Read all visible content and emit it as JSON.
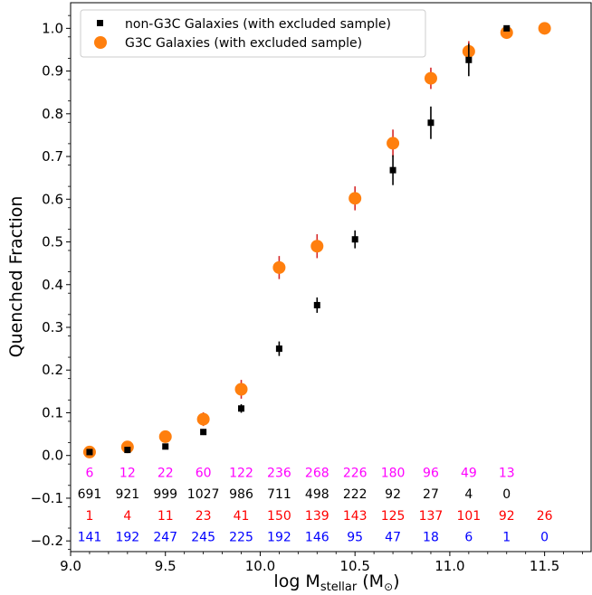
{
  "chart_data": {
    "type": "scatter",
    "xlabel_main": "log M",
    "xlabel_sub": "stellar",
    "xlabel_unit_open": " (M",
    "xlabel_unit_sub": "⊙",
    "xlabel_unit_close": ")",
    "ylabel": "Quenched Fraction",
    "xlim": [
      9.0,
      11.75
    ],
    "ylim": [
      -0.225,
      1.06
    ],
    "x_ticks": [
      9.0,
      9.5,
      10.0,
      10.5,
      11.0,
      11.5
    ],
    "x_tick_labels": [
      "9.0",
      "9.5",
      "10.0",
      "10.5",
      "11.0",
      "11.5"
    ],
    "y_ticks": [
      -0.2,
      -0.1,
      0.0,
      0.1,
      0.2,
      0.3,
      0.4,
      0.5,
      0.6,
      0.7,
      0.8,
      0.9,
      1.0
    ],
    "y_tick_labels": [
      "−0.2",
      "−0.1",
      "0.0",
      "0.1",
      "0.2",
      "0.3",
      "0.4",
      "0.5",
      "0.6",
      "0.7",
      "0.8",
      "0.9",
      "1.0"
    ],
    "legend_position": "top-left",
    "series": [
      {
        "name": "non-G3C Galaxies (with excluded sample)",
        "marker": "square",
        "color": "#000000",
        "errcolor": "#000000",
        "x": [
          9.1,
          9.3,
          9.5,
          9.7,
          9.9,
          10.1,
          10.3,
          10.5,
          10.7,
          10.9,
          11.1,
          11.3
        ],
        "y": [
          0.008,
          0.013,
          0.021,
          0.055,
          0.11,
          0.25,
          0.352,
          0.506,
          0.668,
          0.779,
          0.926,
          1.0
        ],
        "err": [
          0.003,
          0.004,
          0.005,
          0.007,
          0.01,
          0.017,
          0.018,
          0.021,
          0.035,
          0.038,
          0.038,
          0.0
        ]
      },
      {
        "name": "G3C Galaxies (with excluded sample)",
        "marker": "circle",
        "color": "#ff7f0e",
        "errcolor": "#d62728",
        "x": [
          9.1,
          9.3,
          9.5,
          9.7,
          9.9,
          10.1,
          10.3,
          10.5,
          10.7,
          10.9,
          11.1,
          11.3,
          11.5
        ],
        "y": [
          0.008,
          0.02,
          0.044,
          0.085,
          0.155,
          0.44,
          0.49,
          0.602,
          0.731,
          0.883,
          0.946,
          0.99,
          1.0
        ],
        "err": [
          0.005,
          0.01,
          0.014,
          0.016,
          0.022,
          0.027,
          0.028,
          0.028,
          0.032,
          0.025,
          0.024,
          0.009,
          0.0
        ]
      }
    ],
    "count_rows": [
      {
        "color": "#ff00ff",
        "y": -0.04,
        "x": [
          9.1,
          9.3,
          9.5,
          9.7,
          9.9,
          10.1,
          10.3,
          10.5,
          10.7,
          10.9,
          11.1,
          11.3
        ],
        "labels": [
          "6",
          "12",
          "22",
          "60",
          "122",
          "236",
          "268",
          "226",
          "180",
          "96",
          "49",
          "13"
        ]
      },
      {
        "color": "#000000",
        "y": -0.09,
        "x": [
          9.1,
          9.3,
          9.5,
          9.7,
          9.9,
          10.1,
          10.3,
          10.5,
          10.7,
          10.9,
          11.1,
          11.3
        ],
        "labels": [
          "691",
          "921",
          "999",
          "1027",
          "986",
          "711",
          "498",
          "222",
          "92",
          "27",
          "4",
          "0"
        ]
      },
      {
        "color": "#ff0000",
        "y": -0.14,
        "x": [
          9.1,
          9.3,
          9.5,
          9.7,
          9.9,
          10.1,
          10.3,
          10.5,
          10.7,
          10.9,
          11.1,
          11.3,
          11.5
        ],
        "labels": [
          "1",
          "4",
          "11",
          "23",
          "41",
          "150",
          "139",
          "143",
          "125",
          "137",
          "101",
          "92",
          "26"
        ]
      },
      {
        "color": "#0000ff",
        "y": -0.19,
        "x": [
          9.1,
          9.3,
          9.5,
          9.7,
          9.9,
          10.1,
          10.3,
          10.5,
          10.7,
          10.9,
          11.1,
          11.3,
          11.5
        ],
        "labels": [
          "141",
          "192",
          "247",
          "245",
          "225",
          "192",
          "146",
          "95",
          "47",
          "18",
          "6",
          "1",
          "0"
        ]
      }
    ]
  }
}
